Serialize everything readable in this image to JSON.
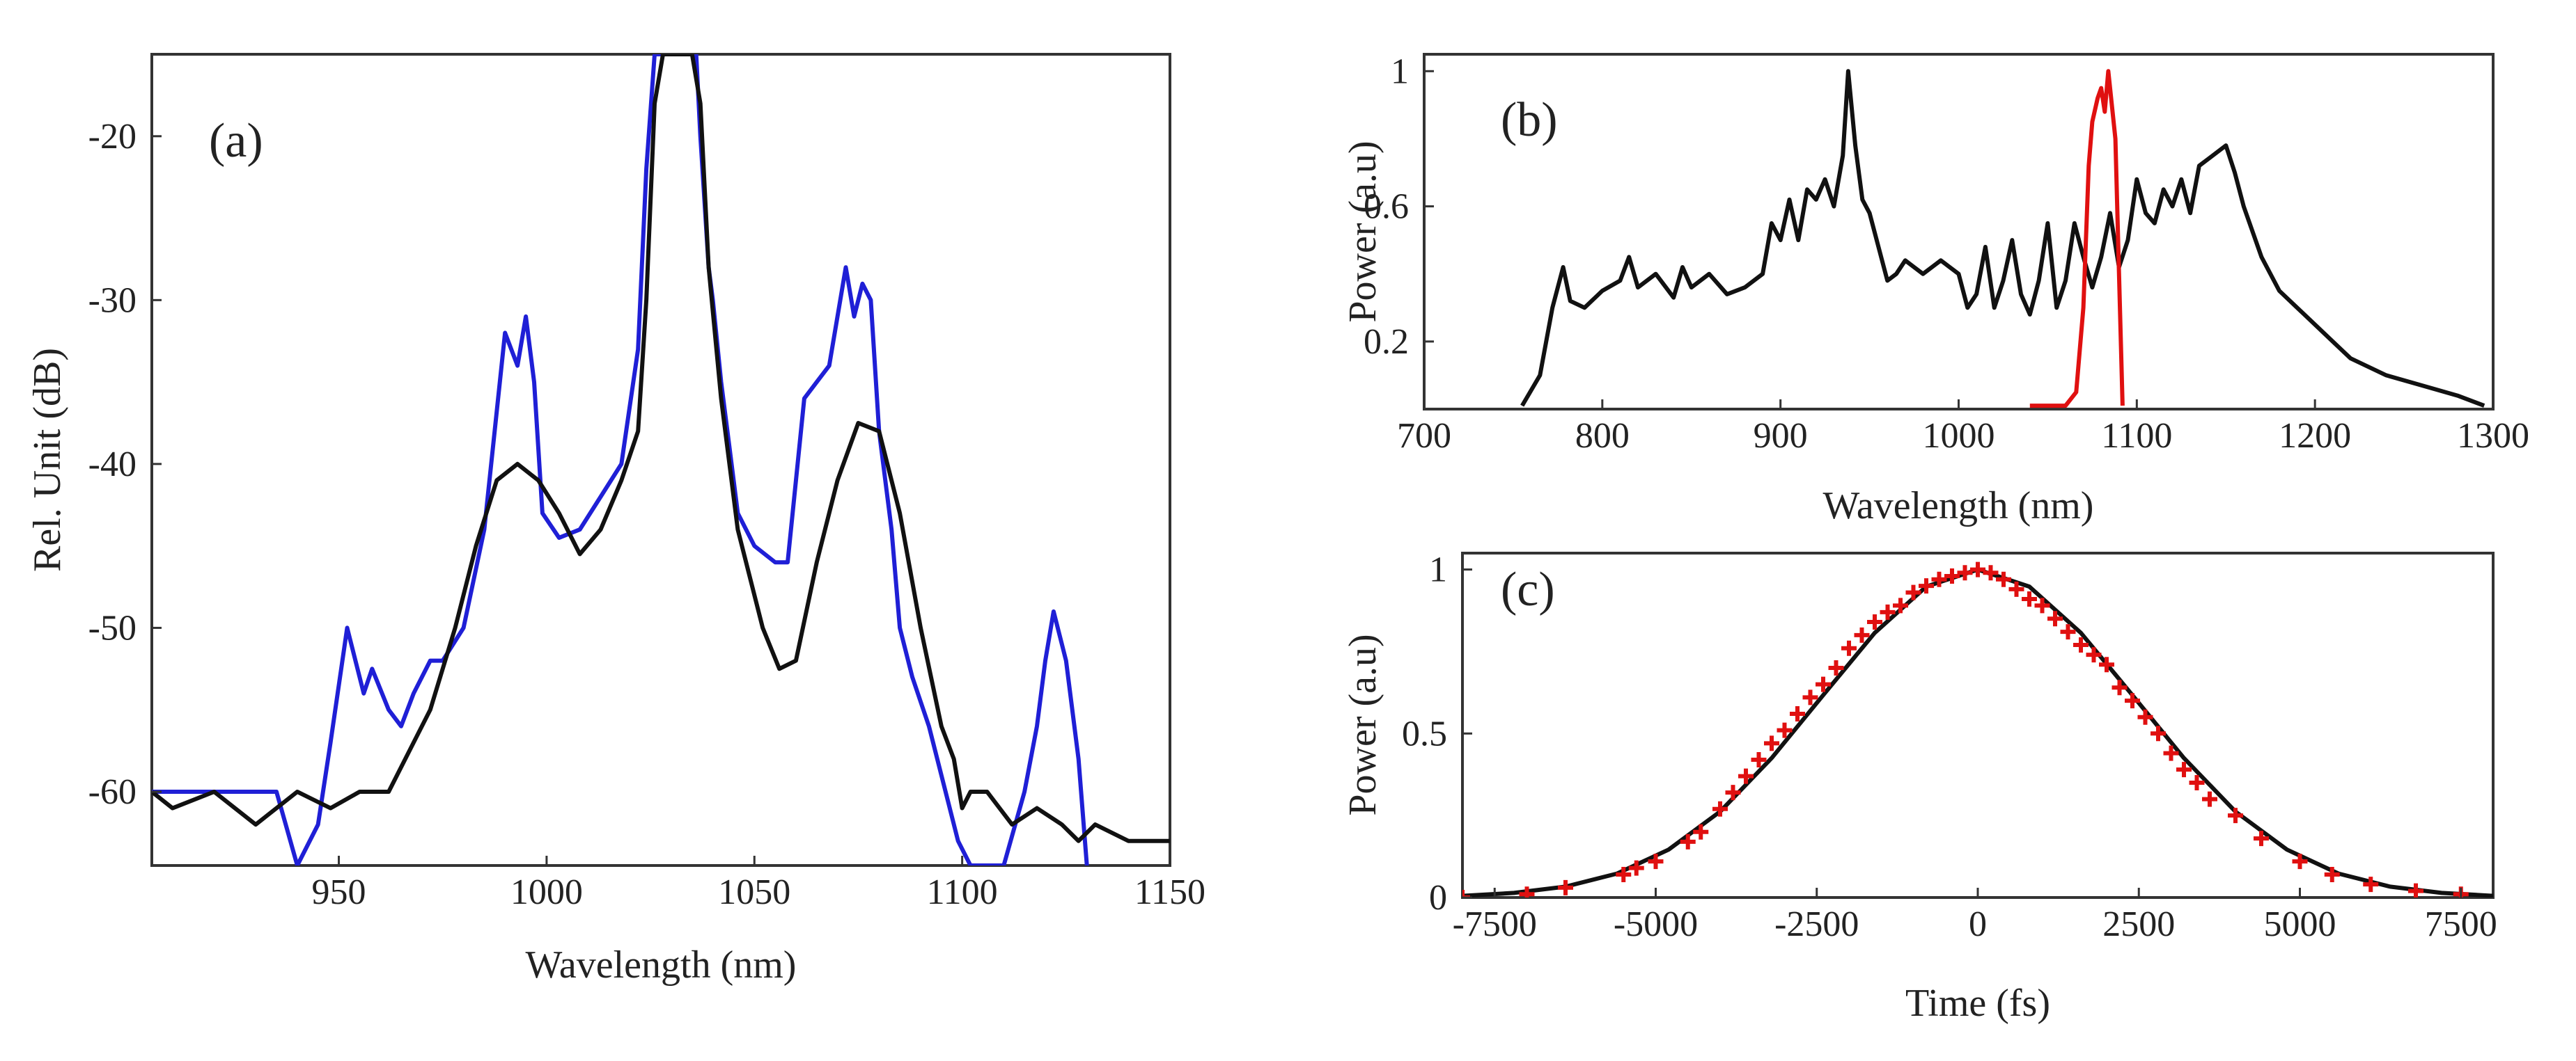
{
  "chart_data": [
    {
      "type": "line",
      "panel_label": "(a)",
      "xlabel": "Wavelength (nm)",
      "ylabel": "Rel. Unit (dB)",
      "xlim": [
        905,
        1150
      ],
      "ylim": [
        -64.5,
        -15
      ],
      "xticks": [
        950,
        1000,
        1050,
        1100,
        1150
      ],
      "yticks": [
        -20,
        -30,
        -40,
        -50,
        -60
      ],
      "grid": false,
      "series": [
        {
          "color": "#1f1fd6",
          "x": [
            905,
            935,
            940,
            945,
            948,
            952,
            956,
            958,
            962,
            965,
            968,
            972,
            975,
            980,
            985,
            990,
            993,
            995,
            997,
            999,
            1003,
            1008,
            1013,
            1018,
            1022,
            1024,
            1026,
            1028,
            1030,
            1031,
            1033,
            1035,
            1036,
            1037,
            1039,
            1040,
            1042,
            1044,
            1046,
            1050,
            1055,
            1058,
            1062,
            1065,
            1068,
            1072,
            1074,
            1076,
            1078,
            1080,
            1083,
            1085,
            1088,
            1092,
            1096,
            1099,
            1102,
            1105,
            1110,
            1115,
            1118,
            1120,
            1122,
            1125,
            1128,
            1130
          ],
          "y": [
            -60,
            -60,
            -64.5,
            -62,
            -57,
            -50,
            -54,
            -52.5,
            -55,
            -56,
            -54,
            -52,
            -52,
            -50,
            -44,
            -32,
            -34,
            -31,
            -35,
            -43,
            -44.5,
            -44,
            -42,
            -40,
            -33,
            -22,
            -15,
            -15,
            -15,
            -15,
            -15,
            -15,
            -15,
            -20,
            -28,
            -30,
            -35,
            -39,
            -43,
            -45,
            -46,
            -46,
            -36,
            -35,
            -34,
            -28,
            -31,
            -29,
            -30,
            -38,
            -44,
            -50,
            -53,
            -56,
            -60,
            -63,
            -64.5,
            -64.5,
            -64.5,
            -60,
            -56,
            -52,
            -49,
            -52,
            -58,
            -64.5
          ]
        },
        {
          "color": "#111111",
          "x": [
            905,
            910,
            920,
            930,
            940,
            948,
            955,
            962,
            968,
            972,
            978,
            983,
            988,
            993,
            998,
            1003,
            1008,
            1013,
            1018,
            1022,
            1024,
            1026,
            1028,
            1033,
            1035,
            1037,
            1039,
            1042,
            1046,
            1052,
            1056,
            1060,
            1065,
            1070,
            1075,
            1080,
            1085,
            1090,
            1095,
            1098,
            1100,
            1102,
            1106,
            1112,
            1118,
            1124,
            1128,
            1132,
            1140,
            1150
          ],
          "y": [
            -60,
            -61,
            -60,
            -62,
            -60,
            -61,
            -60,
            -60,
            -57,
            -55,
            -50,
            -45,
            -41,
            -40,
            -41,
            -43,
            -45.5,
            -44,
            -41,
            -38,
            -30,
            -18,
            -15,
            -15,
            -15,
            -18,
            -28,
            -36,
            -44,
            -50,
            -52.5,
            -52,
            -46,
            -41,
            -37.5,
            -38,
            -43,
            -50,
            -56,
            -58,
            -61,
            -60,
            -60,
            -62,
            -61,
            -62,
            -63,
            -62,
            -63,
            -63
          ]
        }
      ]
    },
    {
      "type": "line",
      "panel_label": "(b)",
      "xlabel": "Wavelength (nm)",
      "ylabel": "Power (a.u)",
      "xlim": [
        700,
        1300
      ],
      "ylim": [
        0,
        1.05
      ],
      "xticks": [
        700,
        800,
        900,
        1000,
        1100,
        1200,
        1300
      ],
      "yticks": [
        0.2,
        0.6,
        1
      ],
      "grid": false,
      "series": [
        {
          "color": "#111111",
          "x": [
            755,
            765,
            772,
            778,
            782,
            790,
            800,
            810,
            815,
            820,
            830,
            840,
            845,
            850,
            860,
            870,
            880,
            890,
            895,
            900,
            905,
            910,
            915,
            920,
            925,
            930,
            935,
            938,
            942,
            946,
            950,
            955,
            960,
            965,
            970,
            980,
            990,
            1000,
            1005,
            1010,
            1015,
            1020,
            1025,
            1030,
            1035,
            1040,
            1045,
            1050,
            1055,
            1060,
            1065,
            1070,
            1075,
            1080,
            1085,
            1090,
            1095,
            1100,
            1105,
            1110,
            1115,
            1120,
            1125,
            1130,
            1135,
            1140,
            1145,
            1150,
            1155,
            1160,
            1170,
            1180,
            1190,
            1200,
            1210,
            1220,
            1240,
            1260,
            1280,
            1295
          ],
          "y": [
            0.01,
            0.1,
            0.3,
            0.42,
            0.32,
            0.3,
            0.35,
            0.38,
            0.45,
            0.36,
            0.4,
            0.33,
            0.42,
            0.36,
            0.4,
            0.34,
            0.36,
            0.4,
            0.55,
            0.5,
            0.62,
            0.5,
            0.65,
            0.62,
            0.68,
            0.6,
            0.75,
            1.0,
            0.78,
            0.62,
            0.58,
            0.48,
            0.38,
            0.4,
            0.44,
            0.4,
            0.44,
            0.4,
            0.3,
            0.34,
            0.48,
            0.3,
            0.38,
            0.5,
            0.34,
            0.28,
            0.38,
            0.55,
            0.3,
            0.38,
            0.55,
            0.45,
            0.36,
            0.45,
            0.58,
            0.42,
            0.5,
            0.68,
            0.58,
            0.55,
            0.65,
            0.6,
            0.68,
            0.58,
            0.72,
            0.74,
            0.76,
            0.78,
            0.7,
            0.6,
            0.45,
            0.35,
            0.3,
            0.25,
            0.2,
            0.15,
            0.1,
            0.07,
            0.04,
            0.01
          ]
        },
        {
          "color": "#e01010",
          "x": [
            1040,
            1060,
            1066,
            1070,
            1073,
            1075,
            1078,
            1080,
            1082,
            1084,
            1086,
            1088,
            1090,
            1092
          ],
          "y": [
            0.01,
            0.01,
            0.05,
            0.3,
            0.72,
            0.85,
            0.92,
            0.95,
            0.88,
            1.0,
            0.9,
            0.8,
            0.4,
            0.01
          ]
        }
      ]
    },
    {
      "type": "scatter",
      "panel_label": "(c)",
      "xlabel": "Time (fs)",
      "ylabel": "Power (a.u)",
      "xlim": [
        -8000,
        8000
      ],
      "ylim": [
        0,
        1.05
      ],
      "xticks": [
        -7500,
        -5000,
        -2500,
        0,
        2500,
        5000,
        7500
      ],
      "yticks": [
        0,
        0.5,
        1
      ],
      "grid": false,
      "fit_line": {
        "color": "#111111",
        "x": [
          -8000,
          -7200,
          -6400,
          -5600,
          -4800,
          -4000,
          -3200,
          -2400,
          -1600,
          -800,
          0,
          800,
          1600,
          2400,
          3200,
          4000,
          4800,
          5600,
          6400,
          7200,
          8000
        ],
        "y": [
          0.005,
          0.014,
          0.033,
          0.073,
          0.146,
          0.262,
          0.425,
          0.617,
          0.807,
          0.948,
          1.0,
          0.948,
          0.807,
          0.617,
          0.425,
          0.262,
          0.146,
          0.073,
          0.033,
          0.014,
          0.005
        ]
      },
      "points": {
        "color": "#e01010",
        "x": [
          -8000,
          -7000,
          -6400,
          -5500,
          -5300,
          -5000,
          -4500,
          -4300,
          -4000,
          -3800,
          -3600,
          -3400,
          -3200,
          -3000,
          -2800,
          -2600,
          -2400,
          -2200,
          -2000,
          -1800,
          -1600,
          -1400,
          -1200,
          -1000,
          -800,
          -600,
          -400,
          -200,
          0,
          200,
          400,
          600,
          800,
          1000,
          1200,
          1400,
          1600,
          1800,
          2000,
          2200,
          2400,
          2600,
          2800,
          3000,
          3200,
          3400,
          3600,
          4000,
          4400,
          5000,
          5500,
          6100,
          6800,
          7500
        ],
        "y": [
          0.0,
          0.01,
          0.03,
          0.07,
          0.09,
          0.11,
          0.17,
          0.2,
          0.27,
          0.32,
          0.37,
          0.42,
          0.47,
          0.51,
          0.56,
          0.61,
          0.65,
          0.7,
          0.76,
          0.8,
          0.84,
          0.87,
          0.89,
          0.93,
          0.95,
          0.97,
          0.98,
          0.99,
          1.0,
          0.99,
          0.97,
          0.94,
          0.91,
          0.89,
          0.85,
          0.81,
          0.77,
          0.74,
          0.71,
          0.64,
          0.6,
          0.55,
          0.5,
          0.44,
          0.39,
          0.35,
          0.3,
          0.25,
          0.18,
          0.11,
          0.07,
          0.04,
          0.02,
          0.01
        ]
      }
    }
  ]
}
